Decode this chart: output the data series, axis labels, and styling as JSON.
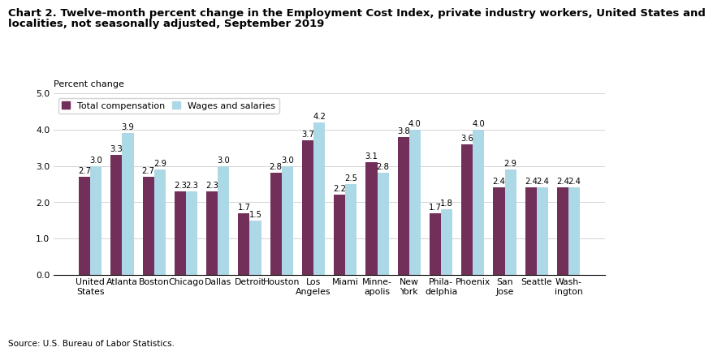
{
  "title_line1": "Chart 2. Twelve-month percent change in the Employment Cost Index, private industry workers, United States and",
  "title_line2": "localities, not seasonally adjusted, September 2019",
  "ylabel": "Percent change",
  "source": "Source: U.S. Bureau of Labor Statistics.",
  "categories": [
    "United\nStates",
    "Atlanta",
    "Boston",
    "Chicago",
    "Dallas",
    "Detroit",
    "Houston",
    "Los\nAngeles",
    "Miami",
    "Minne-\napolis",
    "New\nYork",
    "Phila-\ndelphia",
    "Phoenix",
    "San\nJose",
    "Seattle",
    "Wash-\nington"
  ],
  "total_compensation": [
    2.7,
    3.3,
    2.7,
    2.3,
    2.3,
    1.7,
    2.8,
    3.7,
    2.2,
    3.1,
    3.8,
    1.7,
    3.6,
    2.4,
    2.4,
    2.4
  ],
  "wages_and_salaries": [
    3.0,
    3.9,
    2.9,
    2.3,
    3.0,
    1.5,
    3.0,
    4.2,
    2.5,
    2.8,
    4.0,
    1.8,
    4.0,
    2.9,
    2.4,
    2.4
  ],
  "total_comp_color": "#722F5A",
  "wages_color": "#ADD8E6",
  "ylim": [
    0,
    5.0
  ],
  "yticks": [
    0.0,
    1.0,
    2.0,
    3.0,
    4.0,
    5.0
  ],
  "bar_width": 0.36,
  "legend_labels": [
    "Total compensation",
    "Wages and salaries"
  ],
  "title_fontsize": 9.5,
  "label_fontsize": 8,
  "tick_fontsize": 7.8,
  "value_fontsize": 7.2
}
